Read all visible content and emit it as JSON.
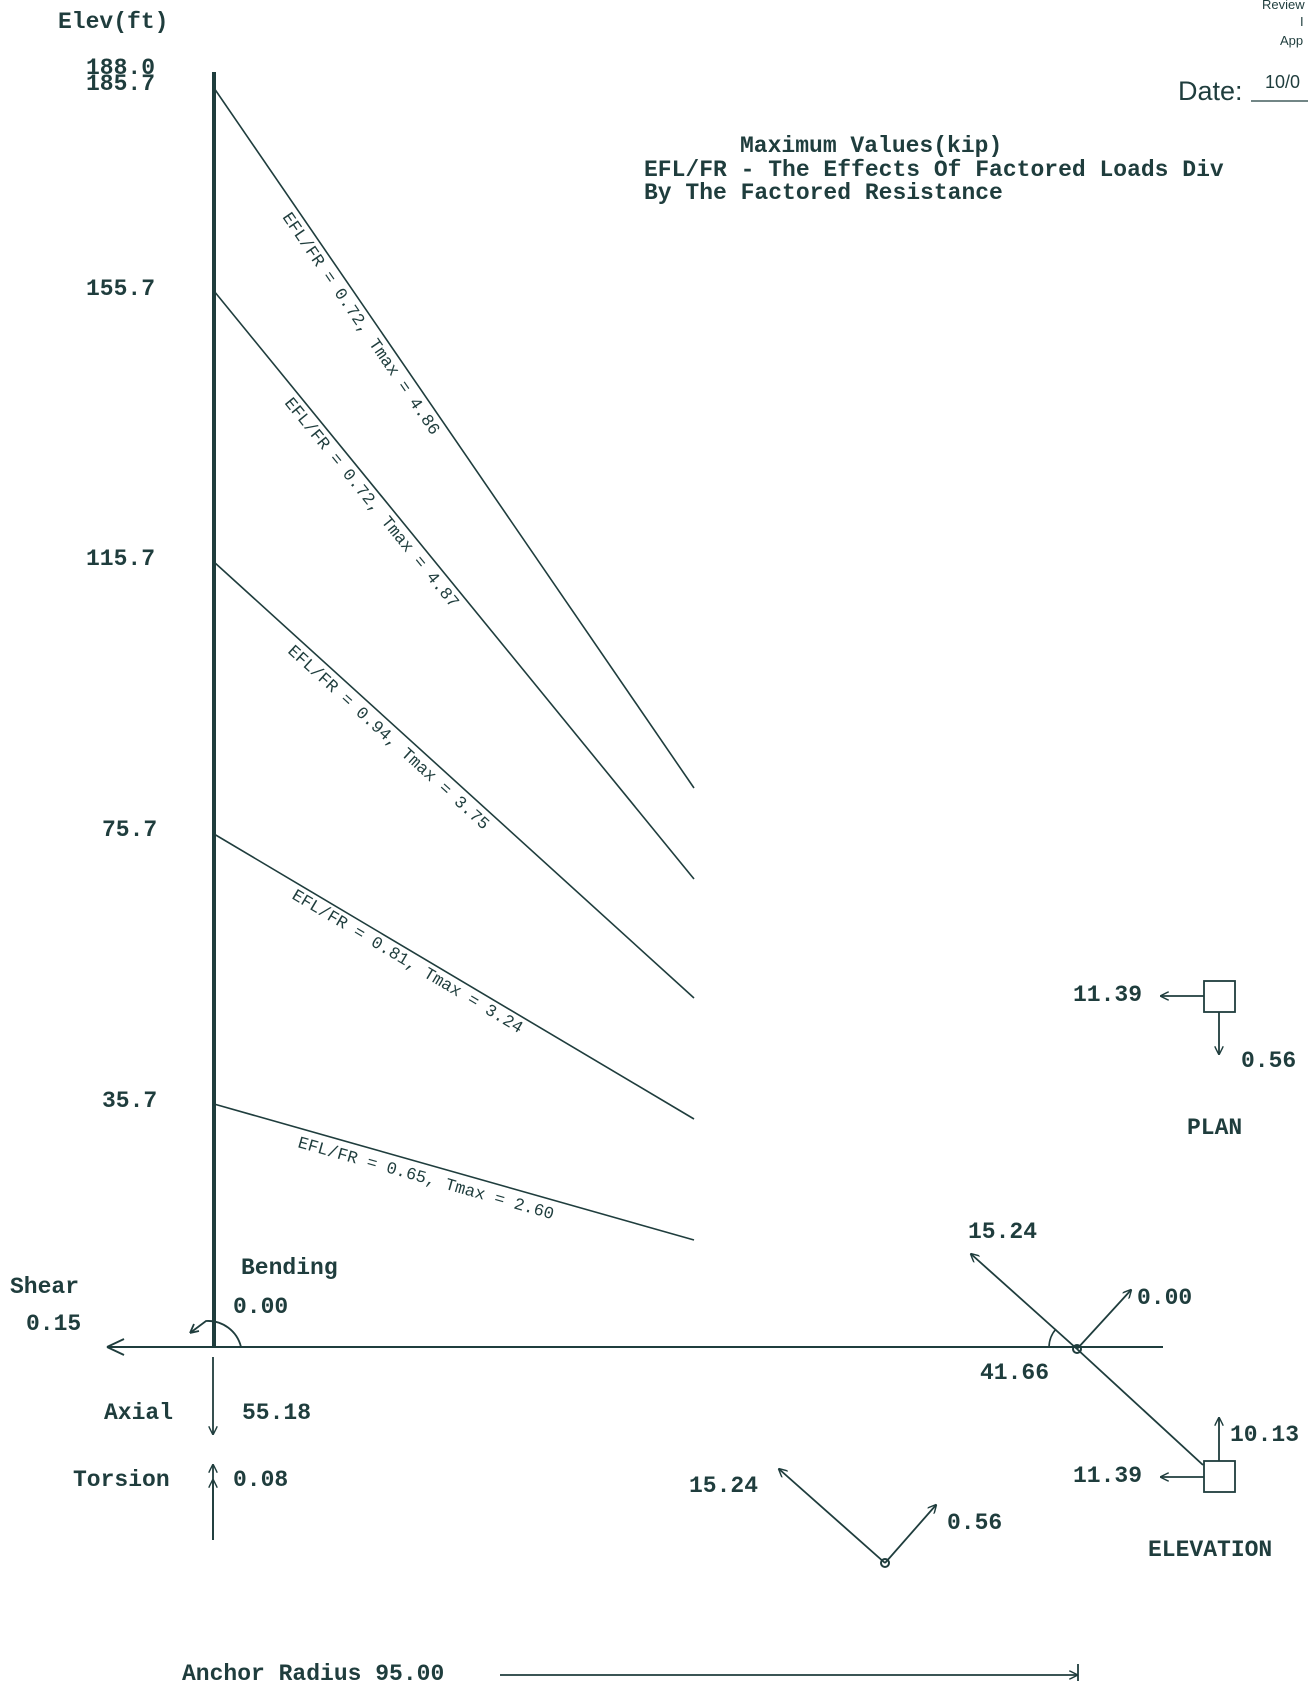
{
  "axis": {
    "title": "Elev(ft)",
    "ticks": [
      "188.0",
      "185.7",
      "155.7",
      "115.7",
      "75.7",
      "35.7"
    ]
  },
  "stamp": {
    "reviewed": "Review",
    "initials": "I",
    "approved": "App",
    "date_label": "Date:",
    "date_value": "10/0"
  },
  "header": {
    "line1": "Maximum Values(kip)",
    "line2": "EFL/FR - The Effects Of Factored Loads Div",
    "line3": "By The Factored Resistance"
  },
  "guys": [
    {
      "label": "EFL/FR = 0.72, Tmax = 4.86"
    },
    {
      "label": "EFL/FR = 0.72, Tmax = 4.87"
    },
    {
      "label": "EFL/FR = 0.94, Tmax = 3.75"
    },
    {
      "label": "EFL/FR = 0.81, Tmax = 3.24"
    },
    {
      "label": "EFL/FR = 0.65, Tmax = 2.60"
    }
  ],
  "base": {
    "bending_label": "Bending",
    "bending_value": "0.00",
    "shear_label": "Shear",
    "shear_value": "0.15",
    "axial_label": "Axial",
    "axial_value": "55.18",
    "torsion_label": "Torsion",
    "torsion_value": "0.08"
  },
  "plan": {
    "title": "PLAN",
    "horizontal": "11.39",
    "vertical": "0.56"
  },
  "elevation": {
    "title": "ELEVATION",
    "tension": "15.24",
    "up": "0.00",
    "angle": "41.66",
    "horizontal": "11.39",
    "vertical": "10.13"
  },
  "resultant": {
    "tension": "15.24",
    "component": "0.56"
  },
  "anchor": {
    "label": "Anchor Radius 95.00"
  }
}
